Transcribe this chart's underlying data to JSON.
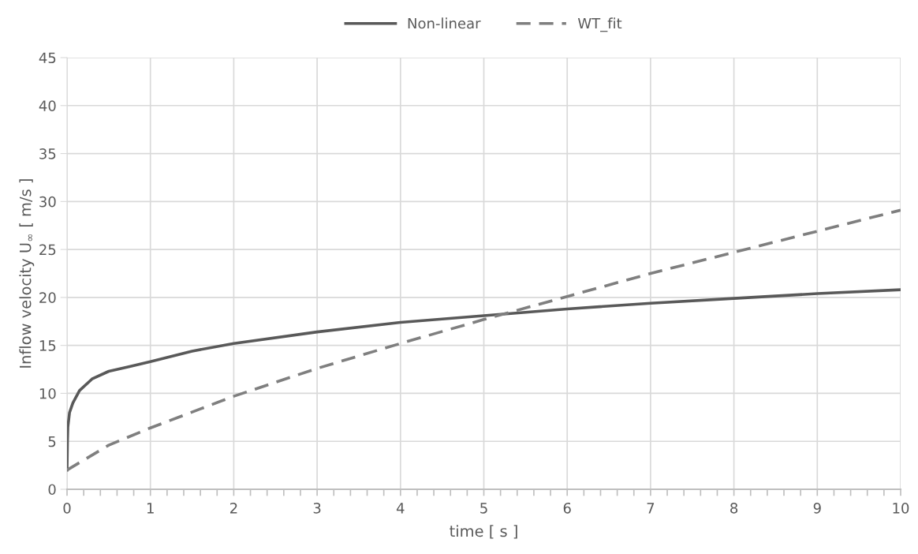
{
  "chart_data": {
    "type": "line",
    "xlabel": "time [ s ]",
    "ylabel": "Inflow velocity U$_{∞}$ [ m/s ]",
    "xlim": [
      0,
      10
    ],
    "ylim": [
      0,
      45
    ],
    "xticks": [
      0,
      {
        "value": 0.2,
        "label": null
      },
      {
        "value": 0.4,
        "label": null
      },
      {
        "value": 0.6,
        "label": null
      },
      {
        "value": 0.8,
        "label": null
      },
      1,
      {
        "value": 1.2,
        "label": null
      },
      {
        "value": 1.4,
        "label": null
      },
      {
        "value": 1.6,
        "label": null
      },
      {
        "value": 1.8,
        "label": null
      },
      2,
      {
        "value": 2.2,
        "label": null
      },
      {
        "value": 2.4,
        "label": null
      },
      {
        "value": 2.6,
        "label": null
      },
      {
        "value": 2.8,
        "label": null
      },
      3,
      {
        "value": 3.2,
        "label": null
      },
      {
        "value": 3.4,
        "label": null
      },
      {
        "value": 3.6,
        "label": null
      },
      {
        "value": 3.8,
        "label": null
      },
      4,
      {
        "value": 4.2,
        "label": null
      },
      {
        "value": 4.4,
        "label": null
      },
      {
        "value": 4.6,
        "label": null
      },
      {
        "value": 4.8,
        "label": null
      },
      5,
      {
        "value": 5.2,
        "label": null
      },
      {
        "value": 5.4,
        "label": null
      },
      {
        "value": 5.6,
        "label": null
      },
      {
        "value": 5.8,
        "label": null
      },
      6,
      {
        "value": 6.2,
        "label": null
      },
      {
        "value": 6.4,
        "label": null
      },
      {
        "value": 6.6,
        "label": null
      },
      {
        "value": 6.8,
        "label": null
      },
      7,
      {
        "value": 7.2,
        "label": null
      },
      {
        "value": 7.4,
        "label": null
      },
      {
        "value": 7.6,
        "label": null
      },
      {
        "value": 7.8,
        "label": null
      },
      8,
      {
        "value": 8.2,
        "label": null
      },
      {
        "value": 8.4,
        "label": null
      },
      {
        "value": 8.6,
        "label": null
      },
      {
        "value": 8.8,
        "label": null
      },
      9,
      {
        "value": 9.2,
        "label": null
      },
      {
        "value": 9.4,
        "label": null
      },
      {
        "value": 9.6,
        "label": null
      },
      {
        "value": 9.8,
        "label": null
      },
      10
    ],
    "yticks": [
      0,
      5,
      10,
      15,
      20,
      25,
      30,
      35,
      40,
      45
    ],
    "grid": true,
    "legend": "top",
    "marker": "none",
    "series": [
      {
        "name": "Non-linear",
        "color": "#595959",
        "line_style": "solid",
        "x": [
          0,
          0.005,
          0.01,
          0.03,
          0.07,
          0.15,
          0.3,
          0.5,
          0.75,
          1,
          1.5,
          2,
          3,
          4,
          5,
          6,
          7,
          8,
          9,
          10
        ],
        "values": [
          2,
          5,
          6.5,
          8,
          9,
          10.3,
          11.5,
          12.3,
          12.8,
          13.3,
          14.4,
          15.2,
          16.4,
          17.4,
          18.1,
          18.8,
          19.4,
          19.9,
          20.4,
          20.8
        ]
      },
      {
        "name": "WT_fit",
        "color": "#7f7f7f",
        "line_style": "dashed",
        "x": [
          0,
          0.5,
          1,
          2,
          3,
          4,
          5,
          6,
          7,
          8,
          9,
          10
        ],
        "values": [
          2,
          4.6,
          6.4,
          9.7,
          12.6,
          15.2,
          17.7,
          20.1,
          22.5,
          24.7,
          26.9,
          29.1
        ]
      }
    ]
  }
}
